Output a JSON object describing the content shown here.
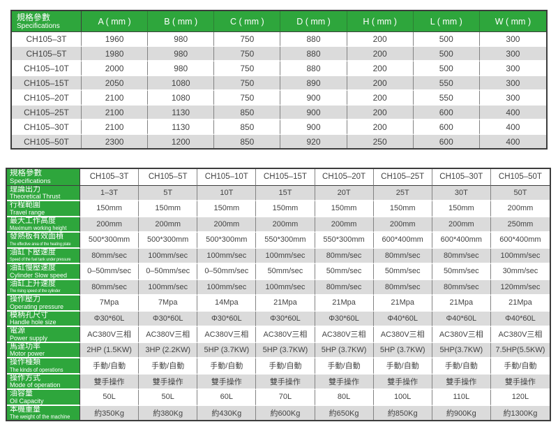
{
  "colors": {
    "header_green": "#2ea63c",
    "row_stripe": "#dbdbdb",
    "row_plain": "#ffffff",
    "border_outer": "#3c3c3c",
    "border_inner": "#828282",
    "text": "#424242"
  },
  "top_table": {
    "corner": {
      "zh": "規格參數",
      "en": "Specifications"
    },
    "columns": [
      "A ( mm )",
      "B ( mm )",
      "C ( mm )",
      "D ( mm )",
      "H ( mm )",
      "L ( mm )",
      "W ( mm )"
    ],
    "rows": [
      {
        "model": "CH105–3T",
        "values": [
          "1960",
          "980",
          "750",
          "880",
          "200",
          "500",
          "300"
        ]
      },
      {
        "model": "CH105–5T",
        "values": [
          "1980",
          "980",
          "750",
          "880",
          "200",
          "500",
          "300"
        ]
      },
      {
        "model": "CH105–10T",
        "values": [
          "2000",
          "980",
          "750",
          "880",
          "200",
          "500",
          "300"
        ]
      },
      {
        "model": "CH105–15T",
        "values": [
          "2050",
          "1080",
          "750",
          "890",
          "200",
          "550",
          "300"
        ]
      },
      {
        "model": "CH105–20T",
        "values": [
          "2100",
          "1080",
          "750",
          "900",
          "200",
          "550",
          "300"
        ]
      },
      {
        "model": "CH105–25T",
        "values": [
          "2100",
          "1130",
          "850",
          "900",
          "200",
          "600",
          "400"
        ]
      },
      {
        "model": "CH105–30T",
        "values": [
          "2100",
          "1130",
          "850",
          "900",
          "200",
          "600",
          "400"
        ]
      },
      {
        "model": "CH105–50T",
        "values": [
          "2300",
          "1200",
          "850",
          "920",
          "250",
          "600",
          "400"
        ]
      }
    ]
  },
  "bottom_table": {
    "corner": {
      "zh": "規格參數",
      "en": "Specifications"
    },
    "columns": [
      "CH105–3T",
      "CH105–5T",
      "CH105–10T",
      "CH105–15T",
      "CH105–20T",
      "CH105–25T",
      "CH105–30T",
      "CH105–50T"
    ],
    "rows": [
      {
        "zh": "理論出力",
        "en": "Theoretical Thrust",
        "values": [
          "1–3T",
          "5T",
          "10T",
          "15T",
          "20T",
          "25T",
          "30T",
          "50T"
        ]
      },
      {
        "zh": "行程範圍",
        "en": "Travel range",
        "values": [
          "150mm",
          "150mm",
          "150mm",
          "150mm",
          "150mm",
          "150mm",
          "150mm",
          "200mm"
        ]
      },
      {
        "zh": "最大工作高度",
        "en": "Maximum working height",
        "values": [
          "200mm",
          "200mm",
          "200mm",
          "200mm",
          "200mm",
          "200mm",
          "200mm",
          "250mm"
        ]
      },
      {
        "zh": "發熱板有效面積",
        "en": "The effective area of the heating plate",
        "values": [
          "500*300mm",
          "500*300mm",
          "500*300mm",
          "550*300mm",
          "550*300mm",
          "600*400mm",
          "600*400mm",
          "600*400mm"
        ]
      },
      {
        "zh": "油缸下壓速度",
        "en": "Speed of the fuel tank under pressure",
        "values": [
          "80mm/sec",
          "100mm/sec",
          "100mm/sec",
          "100mm/sec",
          "80mm/sec",
          "80mm/sec",
          "80mm/sec",
          "100mm/sec"
        ]
      },
      {
        "zh": "油缸慢壓速度",
        "en": "Cylinder Slow speed",
        "values": [
          "0–50mm/sec",
          "0–50mm/sec",
          "0–50mm/sec",
          "50mm/sec",
          "50mm/sec",
          "50mm/sec",
          "50mm/sec",
          "30mm/sec"
        ]
      },
      {
        "zh": "油缸上升速度",
        "en": "The rising speed of the cylinder",
        "values": [
          "80mm/sec",
          "100mm/sec",
          "100mm/sec",
          "100mm/sec",
          "80mm/sec",
          "80mm/sec",
          "80mm/sec",
          "120mm/sec"
        ]
      },
      {
        "zh": "操作壓力",
        "en": "Operating pressure",
        "values": [
          "7Mpa",
          "7Mpa",
          "14Mpa",
          "21Mpa",
          "21Mpa",
          "21Mpa",
          "21Mpa",
          "21Mpa"
        ]
      },
      {
        "zh": "模柄孔尺寸",
        "en": "Handle hole size",
        "values": [
          "Φ30*60L",
          "Φ30*60L",
          "Φ30*60L",
          "Φ30*60L",
          "Φ30*60L",
          "Φ40*60L",
          "Φ40*60L",
          "Φ40*60L"
        ]
      },
      {
        "zh": "電源",
        "en": "Power supply",
        "values": [
          "AC380V三相",
          "AC380V三相",
          "AC380V三相",
          "AC380V三相",
          "AC380V三相",
          "AC380V三相",
          "AC380V三相",
          "AC380V三相"
        ]
      },
      {
        "zh": "馬達功率",
        "en": "Motor power",
        "values": [
          "2HP (1.5KW)",
          "3HP (2.2KW)",
          "5HP (3.7KW)",
          "5HP (3.7KW)",
          "5HP (3.7KW)",
          "5HP (3.7KW)",
          "5HP(3.7KW)",
          "7.5HP(5.5KW)"
        ]
      },
      {
        "zh": "操作種類",
        "en": "The kinds of operations",
        "values": [
          "手動/自動",
          "手動/自動",
          "手動/自動",
          "手動/自動",
          "手動/自動",
          "手動/自動",
          "手動/自動",
          "手動/自動"
        ]
      },
      {
        "zh": "操作方式",
        "en": "Mode of operation",
        "values": [
          "雙手操作",
          "雙手操作",
          "雙手操作",
          "雙手操作",
          "雙手操作",
          "雙手操作",
          "雙手操作",
          "雙手操作"
        ]
      },
      {
        "zh": "油容量",
        "en": "Oil Capacity",
        "values": [
          "50L",
          "50L",
          "60L",
          "70L",
          "80L",
          "100L",
          "110L",
          "120L"
        ]
      },
      {
        "zh": "本機重量",
        "en": "The weight of the machine",
        "values": [
          "約350Kg",
          "約380Kg",
          "約430Kg",
          "約600Kg",
          "約650Kg",
          "約850Kg",
          "約900Kg",
          "約1300Kg"
        ]
      }
    ]
  }
}
